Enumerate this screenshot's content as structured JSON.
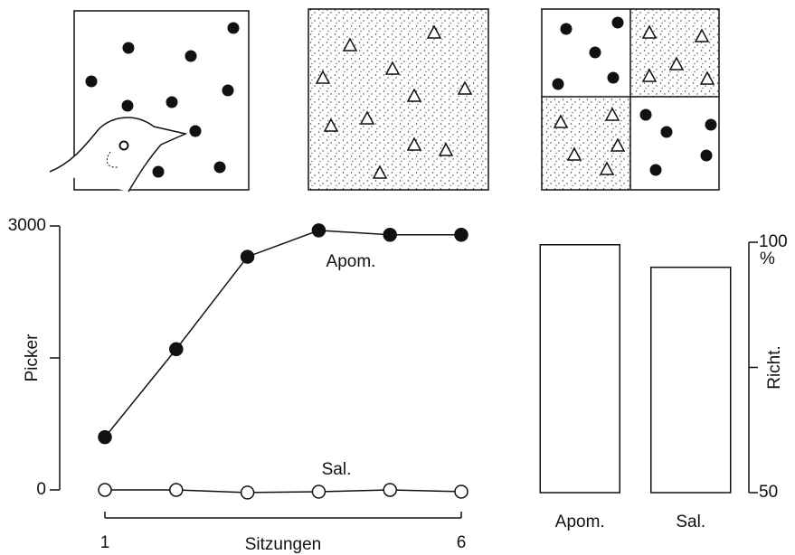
{
  "chart_data": [
    {
      "type": "line",
      "x_label": "Sitzungen",
      "y_label": "Picker",
      "x": [
        1,
        2,
        3,
        4,
        5,
        6
      ],
      "xlim": [
        1,
        6
      ],
      "xticks": [
        1,
        6
      ],
      "ylim": [
        0,
        3000
      ],
      "yticks": [
        0,
        3000
      ],
      "yminor_ticks": [
        1500
      ],
      "series": [
        {
          "name": "Apom.",
          "color": "#111111",
          "marker": "filled",
          "values": [
            600,
            1600,
            2650,
            2950,
            2900,
            2900
          ]
        },
        {
          "name": "Sal.",
          "color": "#111111",
          "marker": "open",
          "values": [
            0,
            0,
            -30,
            -20,
            0,
            -20
          ]
        }
      ]
    },
    {
      "type": "bar",
      "y_label": "Richt.",
      "y_unit": "%",
      "categories": [
        "Apom.",
        "Sal."
      ],
      "values": [
        99.5,
        95
      ],
      "ylim": [
        50,
        100
      ],
      "yticks": [
        50,
        100
      ],
      "yminor_ticks": [
        75
      ],
      "color": "#ffffff"
    }
  ]
}
